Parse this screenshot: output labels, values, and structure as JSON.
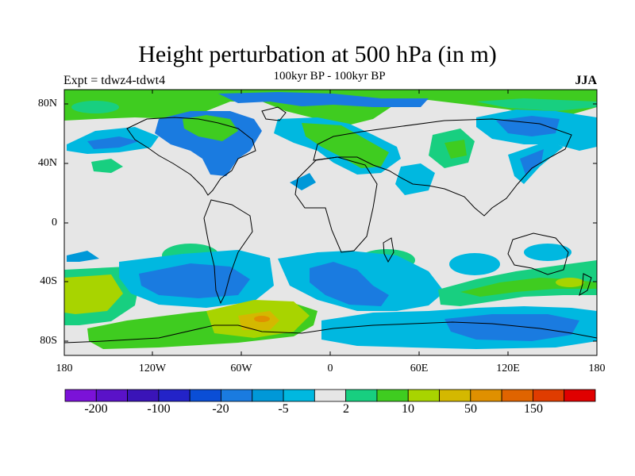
{
  "title": "Height perturbation at 500 hPa (in m)",
  "subtitle": "100kyr BP - 100kyr BP",
  "left_label": "Expt = tdwz4-tdwt4",
  "season": "JJA",
  "lat_labels": [
    "80N",
    "40N",
    "0",
    "40S",
    "80S"
  ],
  "lon_labels": [
    "180",
    "120W",
    "60W",
    "0",
    "60E",
    "120E",
    "180"
  ],
  "colorbar": {
    "colors": [
      "#7b12d8",
      "#5a12c8",
      "#3a14b8",
      "#2323c8",
      "#0a4ed6",
      "#1a7be0",
      "#0098d8",
      "#00b8e0",
      "#e6e6e6",
      "#18cf80",
      "#3fcc20",
      "#a8d400",
      "#d4b800",
      "#e09000",
      "#e06400",
      "#e03c00",
      "#e00000"
    ],
    "labels": [
      "-200",
      "-100",
      "-20",
      "-5",
      "2",
      "10",
      "50",
      "150"
    ]
  },
  "chart_data": {
    "type": "filled contour map",
    "title": "Height perturbation at 500 hPa (in m)",
    "subtitle": "100kyr BP - 100kyr BP",
    "experiment": "Expt = tdwz4-tdwt4",
    "season": "JJA",
    "x_ticks": [
      "180",
      "120W",
      "60W",
      "0",
      "60E",
      "120E",
      "180"
    ],
    "y_ticks": [
      "80N",
      "40N",
      "0",
      "40S",
      "80S"
    ],
    "xlim": [
      -180,
      180
    ],
    "ylim": [
      -90,
      90
    ],
    "colorbar_labels": [
      "-200",
      "-100",
      "-20",
      "-5",
      "2",
      "10",
      "50",
      "150"
    ]
  }
}
